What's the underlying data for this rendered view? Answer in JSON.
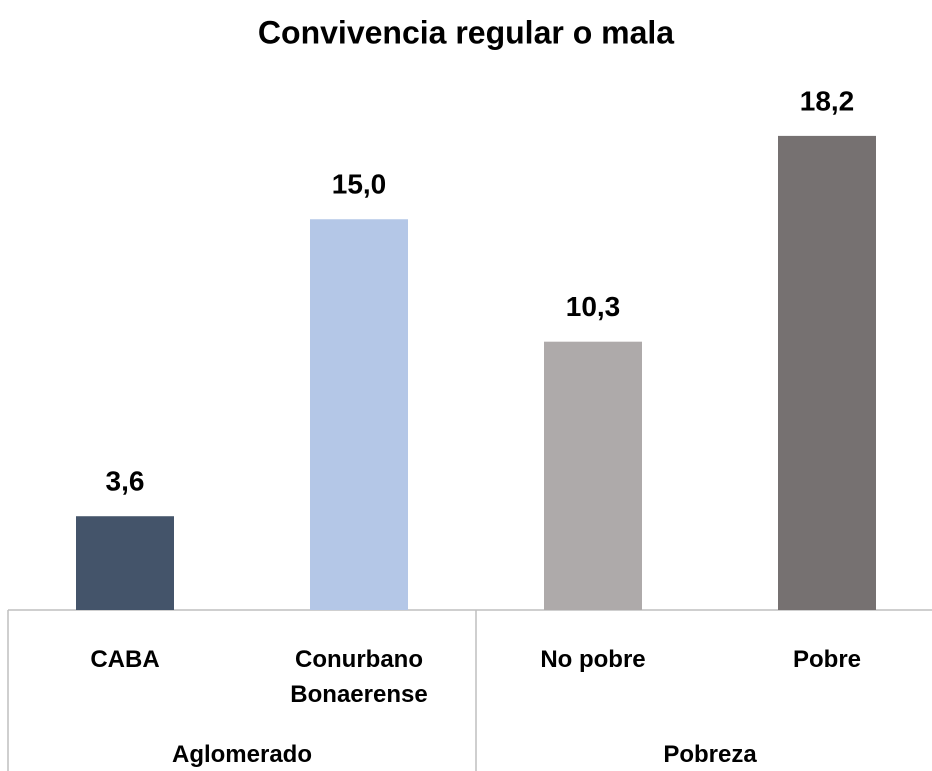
{
  "chart_data": {
    "type": "bar",
    "title": "Convivencia regular o mala",
    "categories": [
      "CABA",
      "Conurbano Bonaerense",
      "No pobre",
      "Pobre"
    ],
    "values": [
      3.6,
      15.0,
      10.3,
      18.2
    ],
    "value_labels": [
      "3,6",
      "15,0",
      "10,3",
      "18,2"
    ],
    "colors": [
      "#44546a",
      "#b4c7e7",
      "#aeaaaa",
      "#767171"
    ],
    "groups": [
      "Aglomerado",
      "Pobreza"
    ],
    "ylim": [
      0,
      20
    ]
  }
}
